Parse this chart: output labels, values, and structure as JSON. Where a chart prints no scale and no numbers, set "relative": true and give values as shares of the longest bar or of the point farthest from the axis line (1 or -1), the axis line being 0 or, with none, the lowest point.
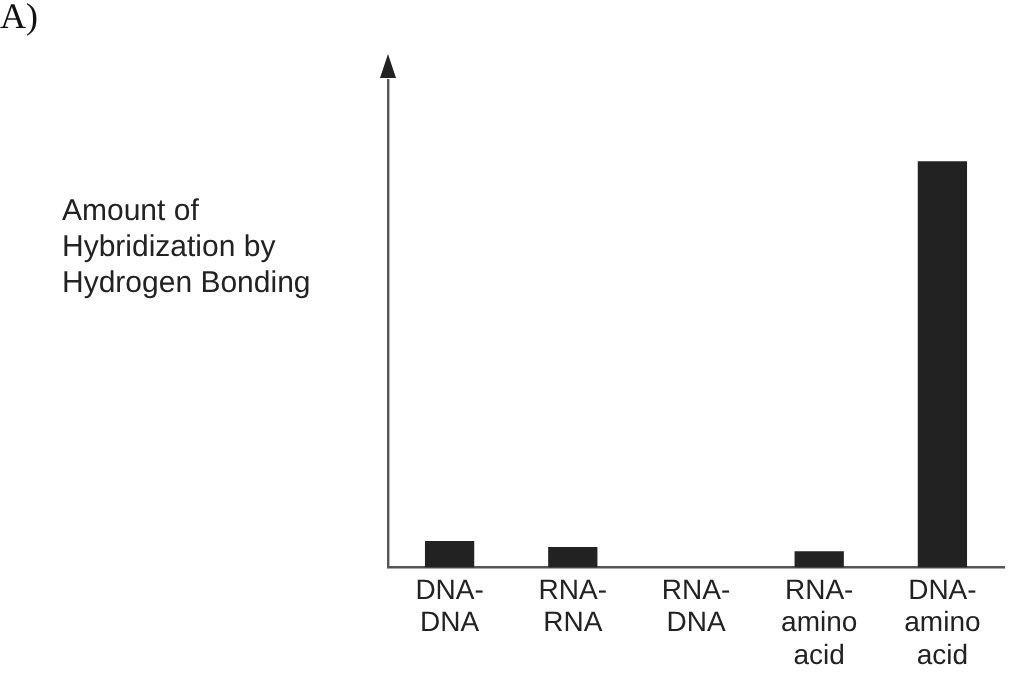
{
  "chart_data": {
    "type": "bar",
    "title": "A)",
    "ylabel": "Amount of Hybridization by Hydrogen Bonding",
    "categories": [
      "DNA-DNA",
      "RNA-RNA",
      "RNA-DNA",
      "RNA-amino acid",
      "DNA-amino acid"
    ],
    "values": [
      0.065,
      0.05,
      0,
      0.04,
      1
    ],
    "color": "#222222",
    "relative": true
  }
}
